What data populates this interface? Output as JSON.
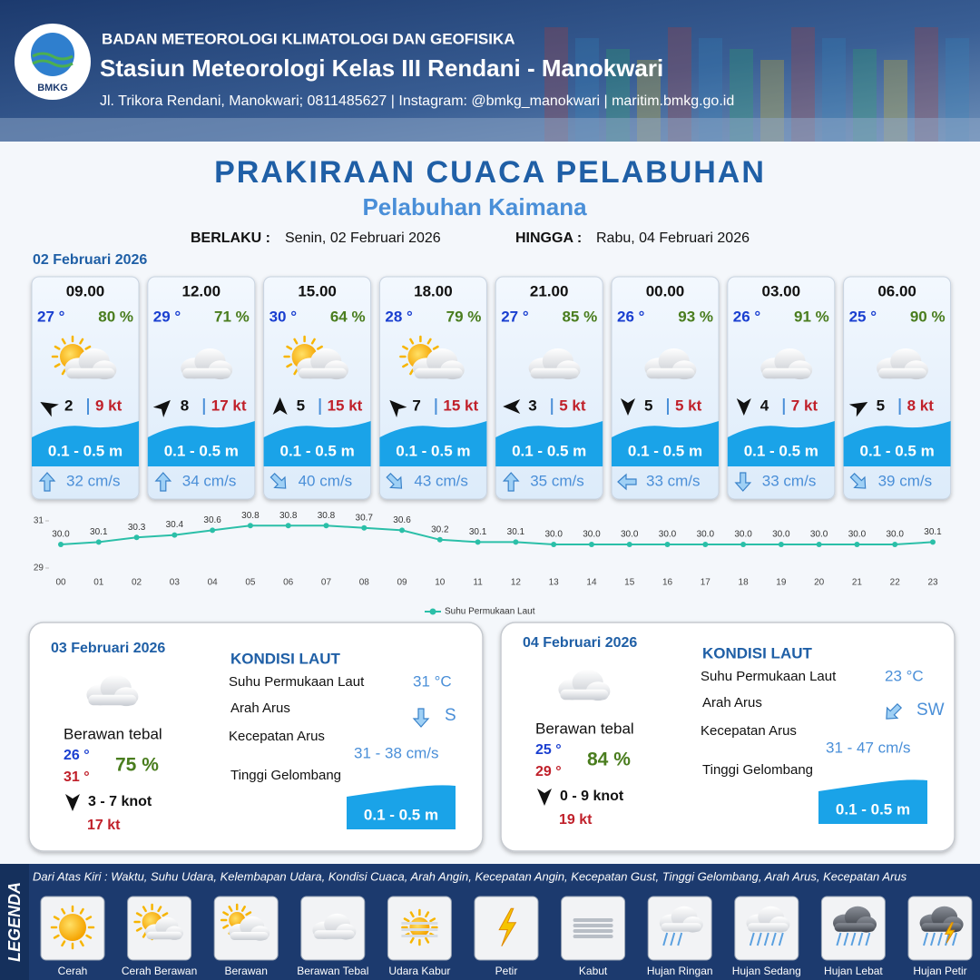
{
  "header": {
    "logo": "BMKG",
    "organization": "BADAN METEOROLOGI KLIMATOLOGI DAN GEOFISIKA",
    "station": "Stasiun Meteorologi Kelas III Rendani - Manokwari",
    "address": "Jl. Trikora Rendani, Manokwari; 0811485627 | Instagram: @bmkg_manokwari | maritim.bmkg.go.id"
  },
  "title": "PRAKIRAAN CUACA PELABUHAN",
  "subtitle": "Pelabuhan Kaimana",
  "validity": {
    "from_label": "BERLAKU :",
    "from": "Senin, 02 Februari 2026",
    "to_label": "HINGGA :",
    "to": "Rabu, 04 Februari 2026"
  },
  "forecast": {
    "date": "02 Februari 2026",
    "cards": [
      {
        "time": "09.00",
        "temperature": "27 °",
        "humidity": "80 %",
        "wind_speed": "2",
        "gust": "9 kt",
        "wave": "0.1 - 0.5 m",
        "current": "32 cm/s"
      },
      {
        "time": "12.00",
        "temperature": "29 °",
        "humidity": "71 %",
        "wind_speed": "8",
        "gust": "17 kt",
        "wave": "0.1 - 0.5 m",
        "current": "34 cm/s"
      },
      {
        "time": "15.00",
        "temperature": "30 °",
        "humidity": "64 %",
        "wind_speed": "5",
        "gust": "15 kt",
        "wave": "0.1 - 0.5 m",
        "current": "40 cm/s"
      },
      {
        "time": "18.00",
        "temperature": "28 °",
        "humidity": "79 %",
        "wind_speed": "7",
        "gust": "15 kt",
        "wave": "0.1 - 0.5 m",
        "current": "43 cm/s"
      },
      {
        "time": "21.00",
        "temperature": "27 °",
        "humidity": "85 %",
        "wind_speed": "3",
        "gust": "5 kt",
        "wave": "0.1 - 0.5 m",
        "current": "35 cm/s"
      },
      {
        "time": "00.00",
        "temperature": "26 °",
        "humidity": "93 %",
        "wind_speed": "5",
        "gust": "5 kt",
        "wave": "0.1 - 0.5 m",
        "current": "33 cm/s"
      },
      {
        "time": "03.00",
        "temperature": "26 °",
        "humidity": "91 %",
        "wind_speed": "4",
        "gust": "7 kt",
        "wave": "0.1 - 0.5 m",
        "current": "33 cm/s"
      },
      {
        "time": "06.00",
        "temperature": "25 °",
        "humidity": "90 %",
        "wind_speed": "5",
        "gust": "8 kt",
        "wave": "0.1 - 0.5 m",
        "current": "39 cm/s"
      }
    ]
  },
  "chart_data": {
    "type": "line",
    "categories": [
      "00",
      "01",
      "02",
      "03",
      "04",
      "05",
      "06",
      "07",
      "08",
      "09",
      "10",
      "11",
      "12",
      "13",
      "14",
      "15",
      "16",
      "17",
      "18",
      "19",
      "20",
      "21",
      "22",
      "23"
    ],
    "series": [
      {
        "name": "Suhu Permukaan Laut",
        "color": "#2bbfa8",
        "values": [
          30.0,
          30.1,
          30.3,
          30.4,
          30.6,
          30.8,
          30.8,
          30.8,
          30.7,
          30.6,
          30.2,
          30.1,
          30.1,
          30.0,
          30.0,
          30.0,
          30.0,
          30.0,
          30.0,
          30.0,
          30.0,
          30.0,
          30.0,
          30.1
        ],
        "value_labels": [
          "30.0",
          "30.1",
          "30.3",
          "30.4",
          "30.6",
          "30.8",
          "30.8",
          "30.8",
          "30.7",
          "30.6",
          "30.2",
          "30.1",
          "30.1",
          "30.0",
          "30.0",
          "30.0",
          "30.0",
          "30.0",
          "30.0",
          "30.0",
          "30.0",
          "30.0",
          "30.0",
          "30.1"
        ]
      }
    ],
    "ylim": [
      29,
      31
    ],
    "yticks": [
      29,
      31
    ],
    "legend": "bottom"
  },
  "days": [
    {
      "date": "03 Februari 2026",
      "condition": "Berawan tebal",
      "temp_min": "26 °",
      "temp_max": "31 °",
      "humidity": "75 %",
      "wind": "3  - 7 knot",
      "gust": "17 kt",
      "sea_title": "KONDISI LAUT",
      "sst_label": "Suhu Permukaan Laut",
      "sst": "31 °C",
      "current_dir_label": "Arah Arus",
      "current_dir": "S",
      "current_speed_label": "Kecepatan Arus",
      "current_speed": "31  - 38 cm/s",
      "wave_label": "Tinggi Gelombang",
      "wave": "0.1 - 0.5 m"
    },
    {
      "date": "04 Februari 2026",
      "condition": "Berawan tebal",
      "temp_min": "25 °",
      "temp_max": "29 °",
      "humidity": "84 %",
      "wind": "0  - 9 knot",
      "gust": "19 kt",
      "sea_title": "KONDISI LAUT",
      "sst_label": "Suhu Permukaan Laut",
      "sst": "23 °C",
      "current_dir_label": "Arah Arus",
      "current_dir": "SW",
      "current_speed_label": "Kecepatan Arus",
      "current_speed": "31 - 47 cm/s",
      "wave_label": "Tinggi Gelombang",
      "wave": "0.1 - 0.5 m"
    }
  ],
  "legend": {
    "title": "LEGENDA",
    "description": "Dari Atas Kiri : Waktu, Suhu Udara, Kelembapan Udara, Kondisi Cuaca, Arah Angin, Kecepatan Angin, Kecepatan Gust, Tinggi Gelombang, Arah Arus, Kecepatan Arus",
    "items": [
      "Cerah",
      "Cerah Berawan",
      "Berawan",
      "Berawan Tebal",
      "Udara Kabur",
      "Petir",
      "Kabut",
      "Hujan Ringan",
      "Hujan Sedang",
      "Hujan Lebat",
      "Hujan Petir"
    ]
  }
}
